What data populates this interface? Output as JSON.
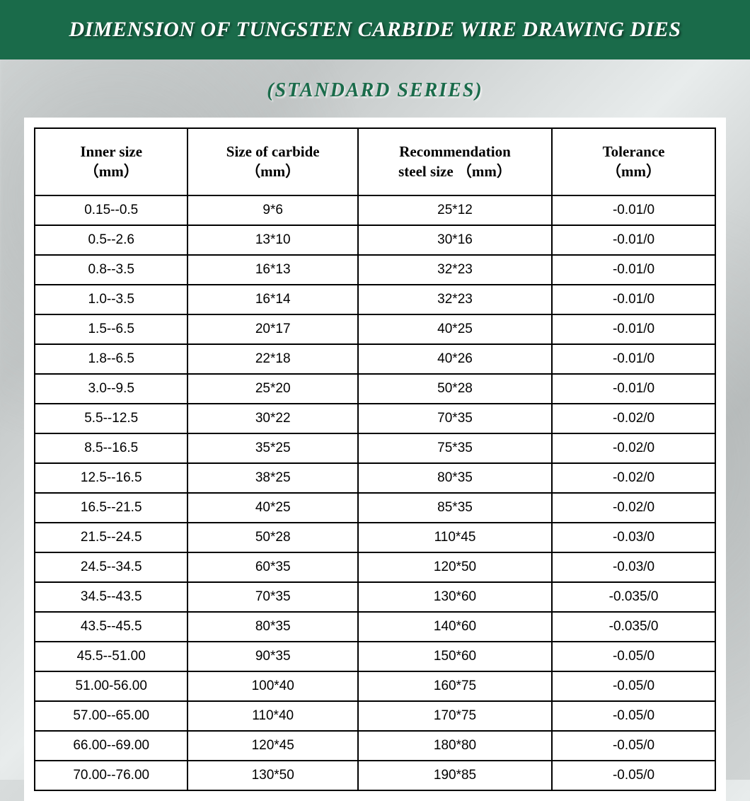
{
  "header": {
    "title": "DIMENSION OF TUNGSTEN CARBIDE WIRE DRAWING DIES",
    "bg_color": "#1a6b4a",
    "title_color": "#ffffff",
    "title_fontsize": 30
  },
  "subtitle": {
    "text": "(STANDARD SERIES)",
    "color": "#1a6b4a",
    "fontsize": 28
  },
  "table": {
    "type": "table",
    "background_color": "#ffffff",
    "border_color": "#000000",
    "border_width": 2,
    "header_fontsize": 21,
    "cell_fontsize": 19,
    "header_font": "Georgia",
    "cell_font": "Arial",
    "columns": [
      {
        "label_line1": "Inner size",
        "label_line2": "（mm）",
        "width_pct": 22.5
      },
      {
        "label_line1": "Size of carbide",
        "label_line2": "（mm）",
        "width_pct": 25
      },
      {
        "label_line1": "Recommendation",
        "label_line2": "steel size （mm）",
        "width_pct": 28.5
      },
      {
        "label_line1": "Tolerance",
        "label_line2": "（mm）",
        "width_pct": 24
      }
    ],
    "rows": [
      [
        "0.15--0.5",
        "9*6",
        "25*12",
        "-0.01/0"
      ],
      [
        "0.5--2.6",
        "13*10",
        "30*16",
        "-0.01/0"
      ],
      [
        "0.8--3.5",
        "16*13",
        "32*23",
        "-0.01/0"
      ],
      [
        "1.0--3.5",
        "16*14",
        "32*23",
        "-0.01/0"
      ],
      [
        "1.5--6.5",
        "20*17",
        "40*25",
        "-0.01/0"
      ],
      [
        "1.8--6.5",
        "22*18",
        "40*26",
        "-0.01/0"
      ],
      [
        "3.0--9.5",
        "25*20",
        "50*28",
        "-0.01/0"
      ],
      [
        "5.5--12.5",
        "30*22",
        "70*35",
        "-0.02/0"
      ],
      [
        "8.5--16.5",
        "35*25",
        "75*35",
        "-0.02/0"
      ],
      [
        "12.5--16.5",
        "38*25",
        "80*35",
        "-0.02/0"
      ],
      [
        "16.5--21.5",
        "40*25",
        "85*35",
        "-0.02/0"
      ],
      [
        "21.5--24.5",
        "50*28",
        "110*45",
        "-0.03/0"
      ],
      [
        "24.5--34.5",
        "60*35",
        "120*50",
        "-0.03/0"
      ],
      [
        "34.5--43.5",
        "70*35",
        "130*60",
        "-0.035/0"
      ],
      [
        "43.5--45.5",
        "80*35",
        "140*60",
        "-0.035/0"
      ],
      [
        "45.5--51.00",
        "90*35",
        "150*60",
        "-0.05/0"
      ],
      [
        "51.00-56.00",
        "100*40",
        "160*75",
        "-0.05/0"
      ],
      [
        "57.00--65.00",
        "110*40",
        "170*75",
        "-0.05/0"
      ],
      [
        "66.00--69.00",
        "120*45",
        "180*80",
        "-0.05/0"
      ],
      [
        "70.00--76.00",
        "130*50",
        "190*85",
        "-0.05/0"
      ]
    ]
  },
  "page_bg": {
    "base_color": "#d0d4d4"
  }
}
